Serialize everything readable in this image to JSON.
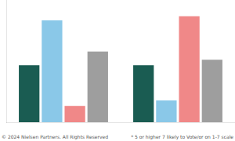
{
  "chart_data": {
    "type": "bar",
    "categories": [
      null,
      null
    ],
    "series": [
      {
        "color": "#1a5c52",
        "values": [
          42,
          42
        ]
      },
      {
        "color": "#8ac8e8",
        "values": [
          75,
          16
        ]
      },
      {
        "color": "#f08888",
        "values": [
          12,
          78
        ]
      },
      {
        "color": "#9e9e9e",
        "values": [
          52,
          46
        ]
      }
    ],
    "ylim": [
      0,
      90
    ],
    "grid": false,
    "tick_labels": false,
    "annotations": [
      "© 2024 Nielsen Partners. All Rights Reserved",
      "* 5 or higher 7 likely to Vote/or on 1-7 scale"
    ]
  }
}
